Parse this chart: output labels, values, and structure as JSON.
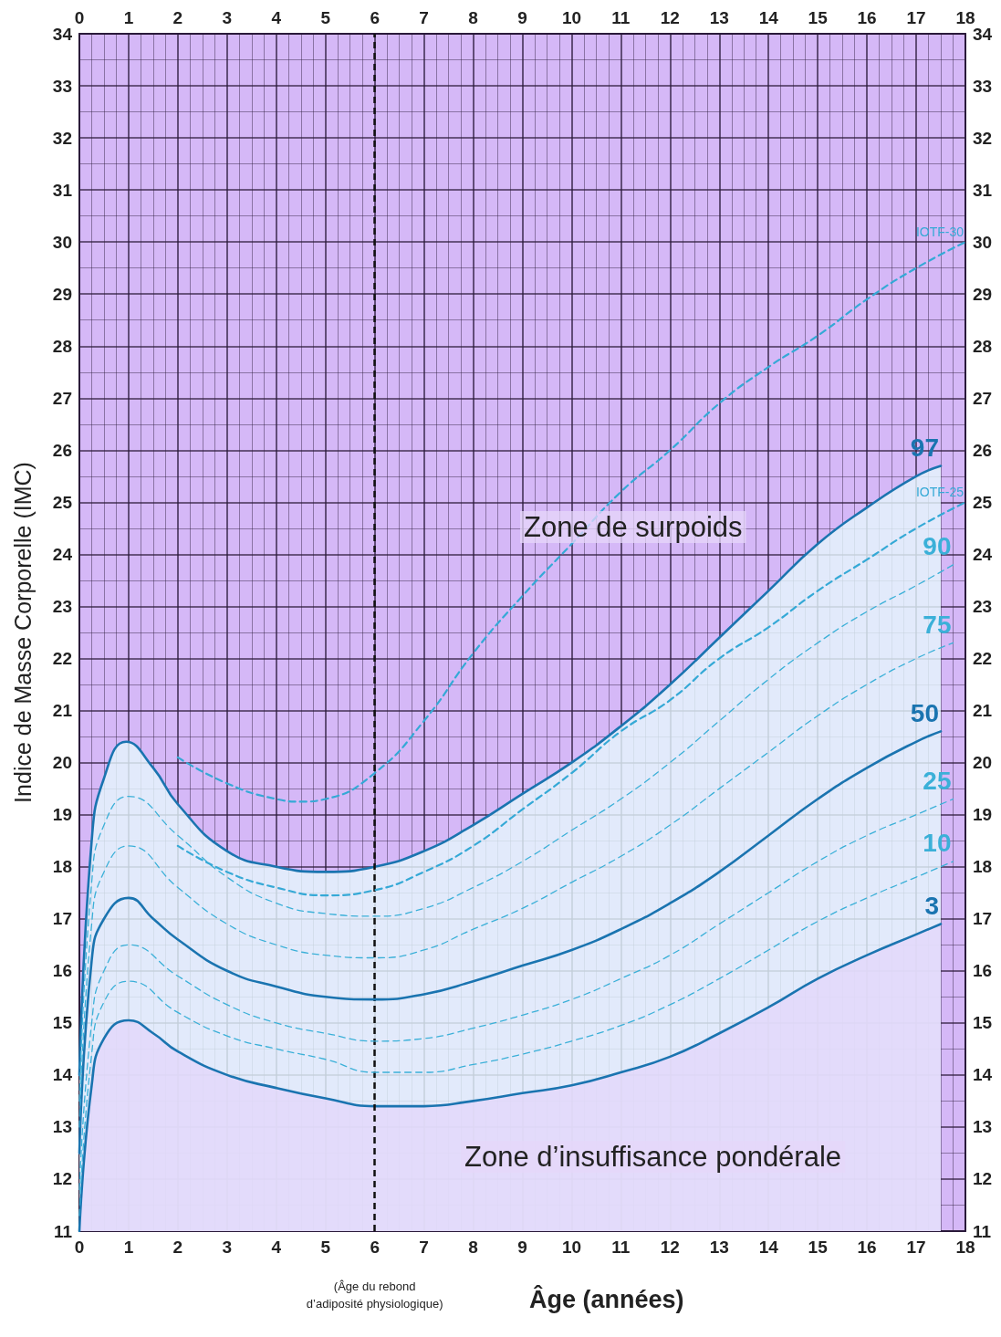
{
  "chart_data": {
    "type": "line",
    "xlabel": "Âge (années)",
    "ylabel": "Indice de Masse Corporelle (IMC)",
    "xlim": [
      0,
      18
    ],
    "xticks": [
      0,
      1,
      2,
      3,
      4,
      5,
      6,
      7,
      8,
      9,
      10,
      11,
      12,
      13,
      14,
      15,
      16,
      17,
      18
    ],
    "x2lim": [
      0,
      18
    ],
    "x2ticks": [
      0,
      1,
      2,
      3,
      4,
      5,
      6,
      7,
      8,
      9,
      10,
      11,
      12,
      13,
      14,
      15,
      16,
      17,
      18
    ],
    "ylim": [
      11,
      34
    ],
    "yticks": [
      11,
      12,
      13,
      14,
      15,
      16,
      17,
      18,
      19,
      20,
      21,
      22,
      23,
      24,
      25,
      26,
      27,
      28,
      29,
      30,
      31,
      32,
      33,
      34
    ],
    "y2lim": [
      11,
      34
    ],
    "y2ticks": [
      11,
      12,
      13,
      14,
      15,
      16,
      17,
      18,
      19,
      20,
      21,
      22,
      23,
      24,
      25,
      26,
      27,
      28,
      29,
      30,
      31,
      32,
      33,
      34
    ],
    "grid": true,
    "marker": "none",
    "series": [
      {
        "name": "97",
        "type": "area",
        "color": "#1a74b0",
        "line_style": "solid",
        "x": [
          0,
          0.25,
          0.5,
          0.95,
          1.5,
          2,
          3,
          4,
          5,
          6,
          7,
          8,
          9,
          10,
          11,
          12,
          13,
          14,
          15,
          16,
          17,
          17.5
        ],
        "values": [
          14,
          18.5,
          19.7,
          20.4,
          19.9,
          19.2,
          18.3,
          18,
          17.9,
          18,
          18.3,
          18.8,
          19.4,
          20,
          20.7,
          21.5,
          22.4,
          23.3,
          24.2,
          24.9,
          25.5,
          25.7
        ]
      },
      {
        "name": "3",
        "type": "area",
        "color": "#1a74b0",
        "line_style": "solid",
        "x": [
          0,
          0.25,
          0.5,
          1,
          1.5,
          2,
          3,
          4,
          5,
          6,
          7,
          8,
          9,
          10,
          11,
          12,
          13,
          14,
          15,
          16,
          17,
          17.5
        ],
        "values": [
          11,
          13.8,
          14.7,
          15.05,
          14.8,
          14.45,
          14,
          13.75,
          13.55,
          13.4,
          13.4,
          13.5,
          13.65,
          13.8,
          14.05,
          14.35,
          14.8,
          15.3,
          15.85,
          16.3,
          16.7,
          16.9
        ]
      },
      {
        "name": "50",
        "color": "#1a74b0",
        "line_style": "solid",
        "x": [
          0,
          0.25,
          0.5,
          1,
          1.5,
          2,
          3,
          4,
          5,
          6,
          7,
          8,
          9,
          10,
          11,
          12,
          13,
          14,
          15,
          16,
          17,
          17.5
        ],
        "values": [
          12.5,
          16.2,
          17,
          17.4,
          17,
          16.6,
          16,
          15.7,
          15.5,
          15.45,
          15.55,
          15.8,
          16.1,
          16.4,
          16.8,
          17.3,
          17.9,
          18.6,
          19.3,
          19.9,
          20.4,
          20.6
        ]
      },
      {
        "name": "10",
        "color": "#3bb0d8",
        "line_style": "dashed",
        "x": [
          0,
          0.25,
          0.5,
          1,
          2,
          3,
          4,
          5,
          6,
          7,
          8,
          9,
          10,
          11,
          12,
          13,
          14,
          15,
          16,
          17,
          17.75
        ],
        "values": [
          11.3,
          14.4,
          15.4,
          15.8,
          15.2,
          14.75,
          14.5,
          14.3,
          14.05,
          14.05,
          14.2,
          14.4,
          14.65,
          14.95,
          15.35,
          15.85,
          16.4,
          16.95,
          17.4,
          17.8,
          18.1
        ]
      },
      {
        "name": "25",
        "color": "#3bb0d8",
        "line_style": "dashed",
        "x": [
          0,
          0.25,
          0.5,
          1,
          2,
          3,
          4,
          5,
          6,
          7,
          8,
          9,
          10,
          11,
          12,
          13,
          14,
          15,
          16,
          17,
          17.75
        ],
        "values": [
          11.8,
          15,
          16,
          16.5,
          15.9,
          15.35,
          15,
          14.8,
          14.65,
          14.7,
          14.9,
          15.15,
          15.45,
          15.85,
          16.3,
          16.9,
          17.5,
          18.1,
          18.6,
          19,
          19.3
        ]
      },
      {
        "name": "75",
        "color": "#3bb0d8",
        "line_style": "dashed",
        "x": [
          0,
          0.25,
          0.5,
          1,
          2,
          3,
          4,
          5,
          6,
          7,
          8,
          9,
          10,
          11,
          12,
          13,
          14,
          15,
          16,
          17,
          17.75
        ],
        "values": [
          13,
          16.9,
          17.9,
          18.4,
          17.6,
          16.9,
          16.5,
          16.3,
          16.25,
          16.4,
          16.8,
          17.2,
          17.7,
          18.2,
          18.8,
          19.5,
          20.2,
          20.9,
          21.5,
          22,
          22.3
        ]
      },
      {
        "name": "90",
        "color": "#3bb0d8",
        "line_style": "dashed",
        "x": [
          0,
          0.25,
          0.5,
          1,
          2,
          3,
          4,
          5,
          6,
          7,
          8,
          9,
          10,
          11,
          12,
          13,
          14,
          15,
          16,
          17,
          17.75
        ],
        "values": [
          13.5,
          17.7,
          18.8,
          19.35,
          18.6,
          17.8,
          17.3,
          17.1,
          17.05,
          17.2,
          17.6,
          18.1,
          18.7,
          19.3,
          20,
          20.8,
          21.6,
          22.3,
          22.9,
          23.4,
          23.8
        ]
      },
      {
        "name": "IOTF-25",
        "color": "#35a9d6",
        "line_style": "dashed",
        "x": [
          2,
          3,
          4,
          5,
          6,
          7,
          8,
          9,
          10,
          11,
          12,
          13,
          14,
          15,
          16,
          17,
          18
        ],
        "values": [
          18.4,
          17.9,
          17.6,
          17.45,
          17.55,
          17.9,
          18.4,
          19.1,
          19.8,
          20.6,
          21.2,
          22,
          22.6,
          23.3,
          23.9,
          24.5,
          25
        ]
      },
      {
        "name": "IOTF-30",
        "color": "#35a9d6",
        "line_style": "dashed",
        "x": [
          2,
          3,
          4,
          4.5,
          5,
          6,
          7,
          8,
          9,
          10,
          11,
          12,
          13,
          14,
          15,
          16,
          17,
          18
        ],
        "values": [
          20.1,
          19.6,
          19.3,
          19.25,
          19.3,
          19.8,
          20.8,
          22.1,
          23.2,
          24.2,
          25.2,
          26,
          26.9,
          27.6,
          28.2,
          28.9,
          29.5,
          30
        ]
      }
    ],
    "ref_lines": [
      {
        "axis": "x",
        "value": 6,
        "label": "(Âge du rebond\nd’adiposité physiologique)",
        "color": "#111111",
        "line_style": "dashed"
      }
    ],
    "annotations": [
      "Zone de surpoids",
      "Zone d’insuffisance pondérale"
    ]
  }
}
